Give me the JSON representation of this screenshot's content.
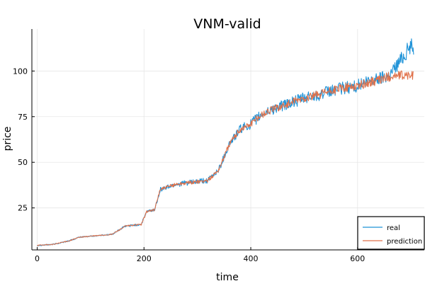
{
  "chart_data": {
    "type": "line",
    "title": "VNM-valid",
    "xlabel": "time",
    "ylabel": "price",
    "xlim": [
      -10,
      725
    ],
    "ylim": [
      2,
      123
    ],
    "xticks": [
      0,
      200,
      400,
      600
    ],
    "yticks": [
      25,
      50,
      75,
      100
    ],
    "grid": true,
    "legend_position": "bottom-right",
    "series": [
      {
        "name": "real",
        "color": "#1f93d8",
        "noise_amplitude": 1.3,
        "knots": [
          [
            0,
            4.5
          ],
          [
            30,
            5
          ],
          [
            60,
            7
          ],
          [
            80,
            9
          ],
          [
            100,
            9.5
          ],
          [
            140,
            10.5
          ],
          [
            165,
            15
          ],
          [
            195,
            16
          ],
          [
            205,
            23
          ],
          [
            220,
            24
          ],
          [
            230,
            35
          ],
          [
            260,
            38
          ],
          [
            290,
            39
          ],
          [
            320,
            40
          ],
          [
            340,
            46
          ],
          [
            360,
            60
          ],
          [
            380,
            68
          ],
          [
            400,
            71
          ],
          [
            420,
            76
          ],
          [
            440,
            79
          ],
          [
            470,
            82
          ],
          [
            500,
            85
          ],
          [
            540,
            88
          ],
          [
            560,
            90
          ],
          [
            600,
            92
          ],
          [
            640,
            96
          ],
          [
            660,
            98
          ],
          [
            680,
            106
          ],
          [
            700,
            114
          ],
          [
            705,
            113
          ]
        ]
      },
      {
        "name": "prediction",
        "color": "#e0714a",
        "noise_amplitude": 0.9,
        "knots": [
          [
            0,
            4.5
          ],
          [
            30,
            5
          ],
          [
            60,
            7
          ],
          [
            80,
            9
          ],
          [
            100,
            9.5
          ],
          [
            140,
            10.5
          ],
          [
            165,
            15
          ],
          [
            195,
            16
          ],
          [
            205,
            23
          ],
          [
            220,
            24
          ],
          [
            230,
            35
          ],
          [
            260,
            38
          ],
          [
            290,
            39
          ],
          [
            320,
            40
          ],
          [
            340,
            46
          ],
          [
            360,
            60
          ],
          [
            380,
            68
          ],
          [
            400,
            71
          ],
          [
            420,
            76
          ],
          [
            440,
            79
          ],
          [
            470,
            82
          ],
          [
            500,
            85
          ],
          [
            540,
            88
          ],
          [
            560,
            90
          ],
          [
            600,
            92
          ],
          [
            640,
            95
          ],
          [
            660,
            97
          ],
          [
            680,
            97.5
          ],
          [
            705,
            97.5
          ]
        ]
      }
    ]
  }
}
